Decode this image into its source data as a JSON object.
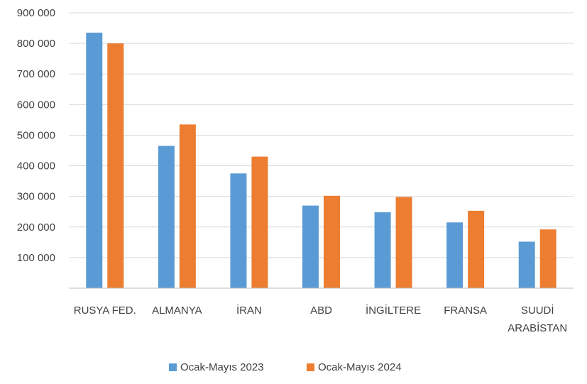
{
  "chart_data": {
    "type": "bar",
    "categories": [
      [
        "RUSYA FED."
      ],
      [
        "ALMANYA"
      ],
      [
        "İRAN"
      ],
      [
        "ABD"
      ],
      [
        "İNGİLTERE"
      ],
      [
        "FRANSA"
      ],
      [
        "SUUDİ",
        "ARABİSTAN"
      ]
    ],
    "series": [
      {
        "name": "Ocak-Mayıs 2023",
        "color": "#5B9BD5",
        "values": [
          835000,
          465000,
          375000,
          270000,
          248000,
          215000,
          152000
        ]
      },
      {
        "name": "Ocak-Mayıs 2024",
        "color": "#ED7D31",
        "values": [
          800000,
          535000,
          430000,
          302000,
          298000,
          253000,
          192000
        ]
      }
    ],
    "y_ticks": [
      "100 000",
      "200 000",
      "300 000",
      "400 000",
      "500 000",
      "600 000",
      "700 000",
      "800 000",
      "900 000"
    ],
    "ylim": [
      0,
      900000
    ],
    "grid": true,
    "legend_position": "bottom",
    "gridline_color": "#d9d9d9",
    "axis_color": "#bfbfbf"
  }
}
